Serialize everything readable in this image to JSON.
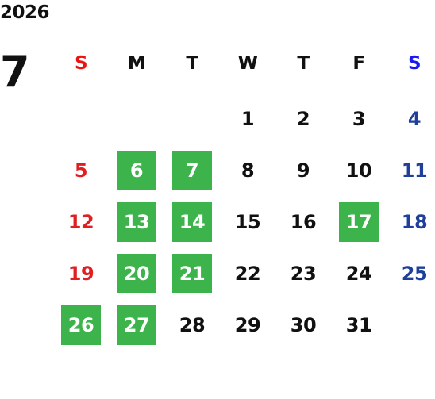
{
  "calendar": {
    "year": "2026",
    "month": "7",
    "weekdays": [
      "S",
      "M",
      "T",
      "W",
      "T",
      "F",
      "S"
    ],
    "weeks": [
      [
        "",
        "",
        "",
        "1",
        "2",
        "3",
        "4"
      ],
      [
        "5",
        "6",
        "7",
        "8",
        "9",
        "10",
        "11"
      ],
      [
        "12",
        "13",
        "14",
        "15",
        "16",
        "17",
        "18"
      ],
      [
        "19",
        "20",
        "21",
        "22",
        "23",
        "24",
        "25"
      ],
      [
        "26",
        "27",
        "28",
        "29",
        "30",
        "31",
        ""
      ]
    ],
    "highlighted_days": [
      "6",
      "7",
      "13",
      "14",
      "17",
      "20",
      "21",
      "26",
      "27"
    ],
    "colors": {
      "highlight": "#3cb44b",
      "sunday": "#e02020",
      "saturday": "#1f3f9a",
      "text": "#111111"
    }
  }
}
